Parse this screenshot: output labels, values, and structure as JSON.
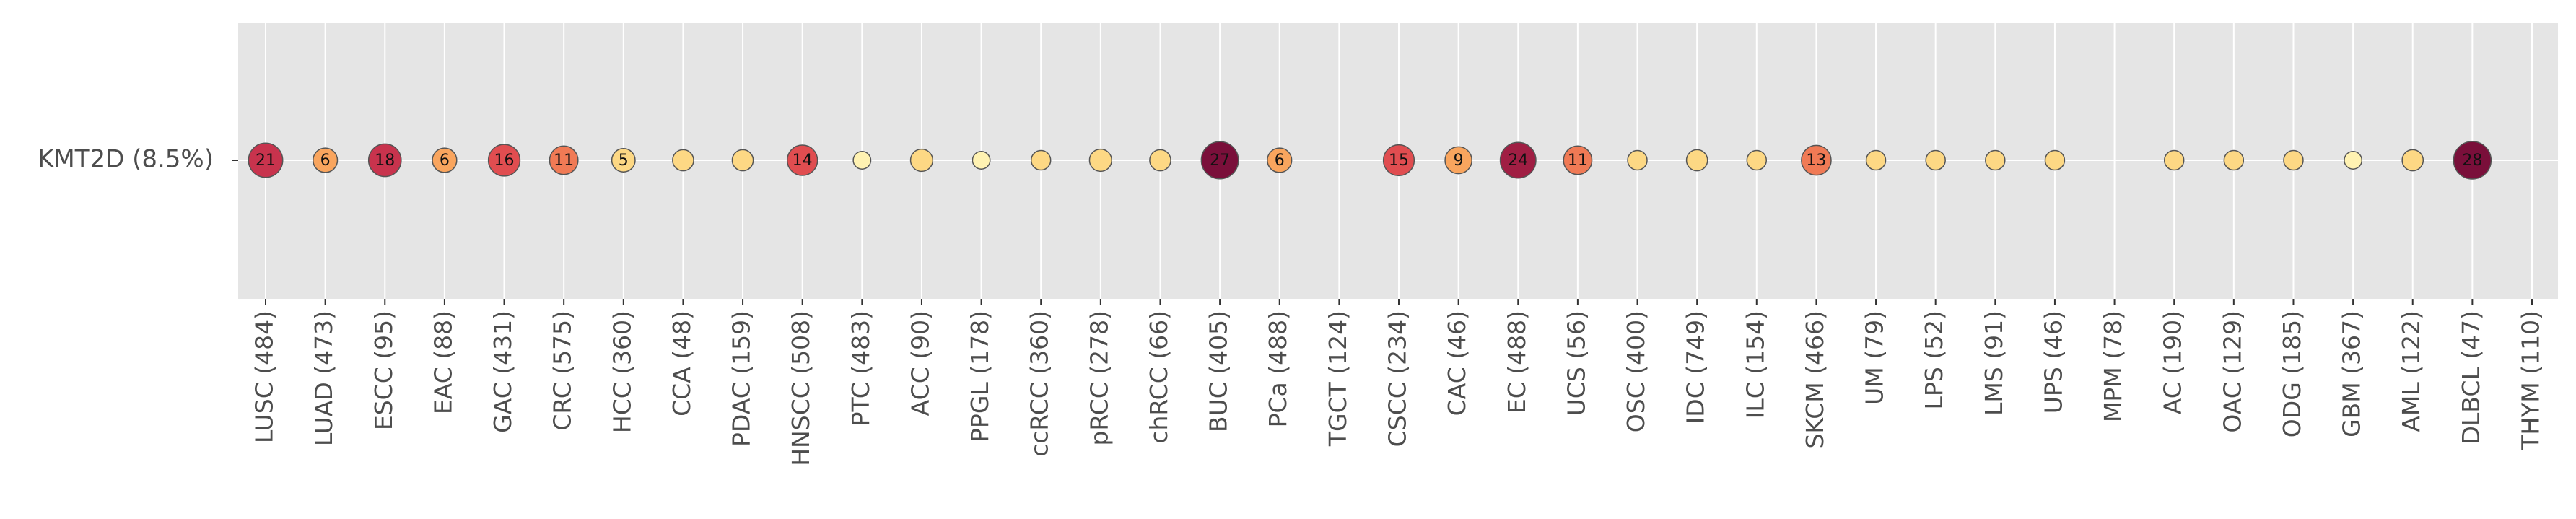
{
  "chart_data": {
    "type": "scatter",
    "title": "",
    "xlabel": "",
    "ylabel": "",
    "grid": true,
    "background": "#e5e5e5",
    "gene": "KMT2D (8.5%)",
    "categories": [
      "LUSC (484)",
      "LUAD (473)",
      "ESCC (95)",
      "EAC (88)",
      "GAC (431)",
      "CRC (575)",
      "HCC (360)",
      "CCA (48)",
      "PDAC (159)",
      "HNSCC (508)",
      "PTC (483)",
      "ACC (90)",
      "PPGL (178)",
      "ccRCC (360)",
      "pRCC (278)",
      "chRCC (66)",
      "BUC (405)",
      "PCa (488)",
      "TGCT (124)",
      "CSCC (234)",
      "CAC (46)",
      "EC (488)",
      "UCS (56)",
      "OSC (400)",
      "IDC (749)",
      "ILC (154)",
      "SKCM (466)",
      "UM (79)",
      "LPS (52)",
      "LMS (91)",
      "UPS (46)",
      "MPM (78)",
      "AC (190)",
      "OAC (129)",
      "ODG (185)",
      "GBM (367)",
      "AML (122)",
      "DLBCL (47)",
      "THYM (110)"
    ],
    "values": [
      21,
      6,
      18,
      6,
      16,
      11,
      5,
      3,
      3,
      14,
      1,
      4,
      1,
      2,
      4,
      3,
      27,
      6,
      0,
      15,
      9,
      24,
      11,
      2,
      3,
      2,
      13,
      2,
      2,
      2,
      2,
      0,
      2,
      2,
      2,
      1,
      3,
      28,
      0
    ],
    "labels": [
      "21",
      "6",
      "18",
      "6",
      "16",
      "11",
      "5",
      "",
      "",
      "14",
      "",
      "",
      "",
      "",
      "",
      "",
      "27",
      "6",
      "",
      "15",
      "9",
      "24",
      "11",
      "",
      "",
      "",
      "13",
      "",
      "",
      "",
      "",
      "",
      "",
      "",
      "",
      "",
      "",
      "28",
      ""
    ],
    "color_scale": [
      "#fff2b2",
      "#fdd884",
      "#f9a55e",
      "#f07a55",
      "#e04d50",
      "#c8334d",
      "#a01e43",
      "#7a0f3a"
    ],
    "marker_edge_color": "#555555"
  }
}
